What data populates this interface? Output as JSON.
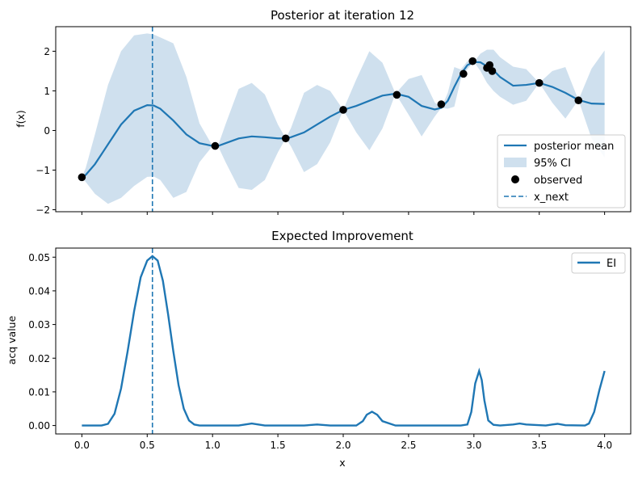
{
  "chart_data": [
    {
      "type": "line",
      "title": "Posterior at iteration 12",
      "xlabel": "",
      "ylabel": "f(x)",
      "xlim": [
        -0.2,
        4.2
      ],
      "ylim": [
        -2.05,
        2.62
      ],
      "x_ticks": [
        0.0,
        0.5,
        1.0,
        1.5,
        2.0,
        2.5,
        3.0,
        3.5,
        4.0
      ],
      "y_ticks": [
        -2,
        -1,
        0,
        1,
        2
      ],
      "y_tick_labels": [
        "−2",
        "−1",
        "0",
        "1",
        "2"
      ],
      "legend": {
        "position": "lower-right",
        "entries": [
          "posterior mean",
          "95% CI",
          "observed",
          "x_next"
        ]
      },
      "colors": {
        "mean": "#1f77b4",
        "ci": "#cfe0ee",
        "observed": "#000000",
        "x_next": "#1f77b4"
      },
      "mean": {
        "x": [
          0.0,
          0.03,
          0.1,
          0.2,
          0.3,
          0.4,
          0.5,
          0.55,
          0.6,
          0.7,
          0.8,
          0.9,
          1.0,
          1.05,
          1.1,
          1.2,
          1.3,
          1.4,
          1.5,
          1.56,
          1.6,
          1.7,
          1.8,
          1.9,
          2.0,
          2.1,
          2.2,
          2.3,
          2.4,
          2.5,
          2.6,
          2.7,
          2.75,
          2.8,
          2.85,
          2.9,
          2.95,
          3.0,
          3.05,
          3.1,
          3.15,
          3.2,
          3.3,
          3.4,
          3.5,
          3.6,
          3.7,
          3.8,
          3.9,
          4.0
        ],
        "y": [
          -1.18,
          -1.12,
          -0.85,
          -0.35,
          0.15,
          0.5,
          0.64,
          0.63,
          0.55,
          0.25,
          -0.1,
          -0.32,
          -0.39,
          -0.38,
          -0.32,
          -0.2,
          -0.15,
          -0.17,
          -0.2,
          -0.2,
          -0.17,
          -0.05,
          0.15,
          0.35,
          0.52,
          0.62,
          0.75,
          0.88,
          0.93,
          0.85,
          0.62,
          0.53,
          0.57,
          0.75,
          1.1,
          1.42,
          1.65,
          1.73,
          1.72,
          1.62,
          1.52,
          1.35,
          1.13,
          1.15,
          1.2,
          1.1,
          0.95,
          0.77,
          0.68,
          0.67
        ]
      },
      "ci": {
        "x": [
          0.0,
          0.03,
          0.1,
          0.2,
          0.3,
          0.4,
          0.5,
          0.55,
          0.6,
          0.7,
          0.8,
          0.9,
          1.0,
          1.05,
          1.1,
          1.2,
          1.3,
          1.4,
          1.5,
          1.56,
          1.6,
          1.7,
          1.8,
          1.9,
          2.0,
          2.1,
          2.2,
          2.3,
          2.4,
          2.5,
          2.6,
          2.7,
          2.75,
          2.8,
          2.85,
          2.9,
          2.95,
          3.0,
          3.05,
          3.1,
          3.15,
          3.2,
          3.3,
          3.4,
          3.5,
          3.6,
          3.7,
          3.8,
          3.9,
          4.0
        ],
        "lower": [
          -1.18,
          -1.3,
          -1.6,
          -1.85,
          -1.7,
          -1.4,
          -1.17,
          -1.16,
          -1.25,
          -1.7,
          -1.55,
          -0.8,
          -0.39,
          -0.45,
          -0.8,
          -1.45,
          -1.5,
          -1.25,
          -0.55,
          -0.2,
          -0.4,
          -1.05,
          -0.85,
          -0.3,
          0.52,
          -0.05,
          -0.5,
          0.05,
          0.93,
          0.4,
          -0.15,
          0.35,
          0.57,
          0.55,
          0.6,
          1.3,
          1.55,
          1.73,
          1.5,
          1.2,
          1.0,
          0.85,
          0.65,
          0.75,
          1.2,
          0.7,
          0.3,
          0.77,
          -0.2,
          -0.68
        ],
        "upper": [
          -1.18,
          -0.94,
          -0.1,
          1.15,
          2.0,
          2.4,
          2.45,
          2.42,
          2.35,
          2.2,
          1.35,
          0.18,
          -0.39,
          -0.31,
          0.16,
          1.05,
          1.2,
          0.91,
          0.15,
          -0.2,
          0.06,
          0.95,
          1.15,
          1.0,
          0.52,
          1.29,
          2.0,
          1.71,
          0.93,
          1.3,
          1.4,
          0.71,
          0.57,
          0.95,
          1.6,
          1.54,
          1.75,
          1.73,
          1.94,
          2.04,
          2.04,
          1.85,
          1.61,
          1.55,
          1.2,
          1.5,
          1.6,
          0.77,
          1.56,
          2.02
        ]
      },
      "observed": {
        "x": [
          0.0,
          1.02,
          1.56,
          2.0,
          2.41,
          2.75,
          2.92,
          2.99,
          3.1,
          3.12,
          3.14,
          3.5,
          3.8
        ],
        "y": [
          -1.18,
          -0.39,
          -0.2,
          0.52,
          0.9,
          0.66,
          1.43,
          1.75,
          1.58,
          1.65,
          1.5,
          1.2,
          0.76
        ]
      },
      "x_next": 0.54
    },
    {
      "type": "line",
      "title": "Expected Improvement",
      "xlabel": "x",
      "ylabel": "acq value",
      "xlim": [
        -0.2,
        4.2
      ],
      "ylim": [
        -0.0025,
        0.0527
      ],
      "x_ticks": [
        0.0,
        0.5,
        1.0,
        1.5,
        2.0,
        2.5,
        3.0,
        3.5,
        4.0
      ],
      "x_tick_labels": [
        "0.0",
        "0.5",
        "1.0",
        "1.5",
        "2.0",
        "2.5",
        "3.0",
        "3.5",
        "4.0"
      ],
      "y_ticks": [
        0.0,
        0.01,
        0.02,
        0.03,
        0.04,
        0.05
      ],
      "y_tick_labels": [
        "0.00",
        "0.01",
        "0.02",
        "0.03",
        "0.04",
        "0.05"
      ],
      "legend": {
        "position": "top-right",
        "entries": [
          "EI"
        ]
      },
      "colors": {
        "ei": "#1f77b4",
        "x_next": "#1f77b4"
      },
      "series": [
        {
          "name": "EI",
          "x": [
            0.0,
            0.15,
            0.2,
            0.25,
            0.3,
            0.35,
            0.4,
            0.45,
            0.5,
            0.54,
            0.58,
            0.62,
            0.66,
            0.7,
            0.74,
            0.78,
            0.82,
            0.86,
            0.9,
            1.0,
            1.2,
            1.25,
            1.3,
            1.35,
            1.4,
            1.7,
            1.8,
            1.9,
            2.1,
            2.15,
            2.18,
            2.22,
            2.26,
            2.3,
            2.4,
            2.9,
            2.95,
            2.98,
            3.01,
            3.04,
            3.06,
            3.08,
            3.11,
            3.15,
            3.2,
            3.3,
            3.35,
            3.4,
            3.55,
            3.6,
            3.64,
            3.7,
            3.85,
            3.88,
            3.92,
            3.96,
            4.0
          ],
          "y": [
            0.0,
            0.0,
            0.0005,
            0.0035,
            0.011,
            0.022,
            0.034,
            0.044,
            0.049,
            0.0503,
            0.049,
            0.043,
            0.033,
            0.022,
            0.012,
            0.005,
            0.0015,
            0.0003,
            0.0,
            0.0,
            0.0,
            0.0003,
            0.0006,
            0.0003,
            0.0,
            0.0,
            0.0003,
            0.0,
            0.0,
            0.0013,
            0.0032,
            0.0041,
            0.0032,
            0.0013,
            0.0,
            0.0,
            0.0003,
            0.004,
            0.0125,
            0.0162,
            0.0135,
            0.0075,
            0.0015,
            0.0002,
            0.0,
            0.0003,
            0.0006,
            0.0003,
            0.0,
            0.0003,
            0.0005,
            0.0001,
            0.0,
            0.0006,
            0.004,
            0.0105,
            0.0162
          ]
        }
      ],
      "x_next": 0.54
    }
  ]
}
